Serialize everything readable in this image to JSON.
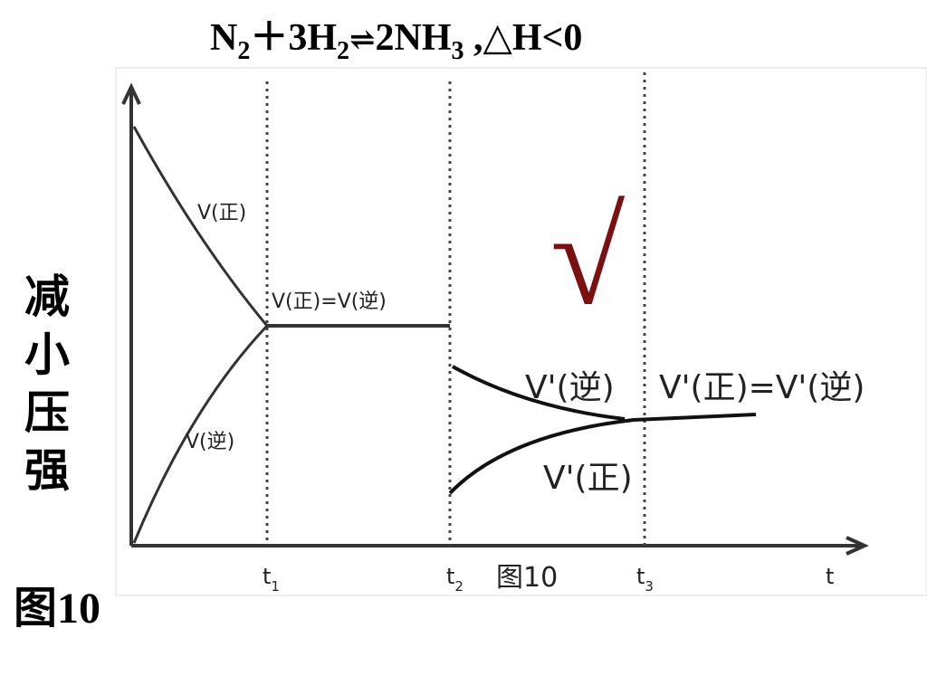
{
  "title": {
    "segments": [
      "N",
      "2",
      "＋3H",
      "2",
      "⇌",
      "2NH",
      "3",
      " ,△H<0"
    ]
  },
  "side_label": "减小压强",
  "figure_label": "图10",
  "diagram": {
    "curve_labels": {
      "v_forward": "V(正)",
      "v_reverse": "V(逆)",
      "equal": "V(正)=V(逆)",
      "v2_reverse": "V'(逆)",
      "v2_equal": "V'(正)=V'(逆)",
      "v2_forward": "V'(正)"
    },
    "time_ticks": [
      [
        "t",
        "1"
      ],
      [
        "t",
        "2"
      ],
      [
        "t",
        "3"
      ]
    ],
    "x_axis_label": "t",
    "caption": "图10",
    "check_mark": "√"
  }
}
